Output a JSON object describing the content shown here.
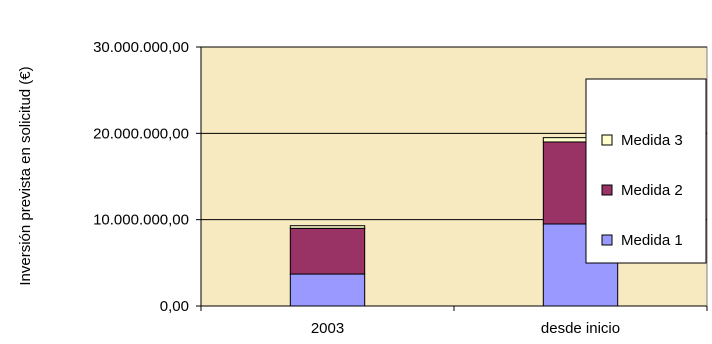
{
  "chart_data": {
    "type": "bar",
    "stacked": true,
    "categories": [
      "2003",
      "desde inicio"
    ],
    "series": [
      {
        "name": "Medida 1",
        "values": [
          3700000,
          9500000
        ],
        "color": "#9999ff"
      },
      {
        "name": "Medida 2",
        "values": [
          5300000,
          9500000
        ],
        "color": "#993366"
      },
      {
        "name": "Medida 3",
        "values": [
          300000,
          500000
        ],
        "color": "#ffffcc"
      }
    ],
    "ylabel": "Inversión prevista en solicitud (€)",
    "ylim": [
      0,
      30000000
    ],
    "yticks": [
      0,
      10000000,
      20000000,
      30000000
    ],
    "ytick_labels": [
      "0,00",
      "10.000.000,00",
      "20.000.000,00",
      "30.000.000,00"
    ],
    "grid": true,
    "plot_background": "#f7e9c0",
    "legend_position": "right",
    "legend_order": [
      "Medida 3",
      "Medida 2",
      "Medida 1"
    ]
  }
}
